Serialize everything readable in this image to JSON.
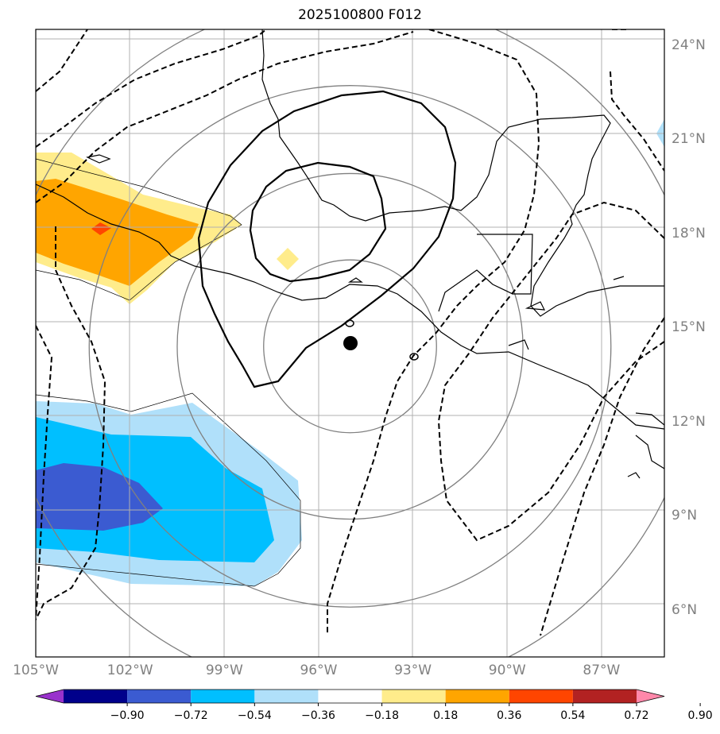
{
  "title": "2025100800 F012",
  "map": {
    "lon_range": [
      -105,
      -85
    ],
    "lat_range": [
      4.5,
      24.5
    ],
    "lon_ticks": [
      {
        "value": -105,
        "label": "105°W"
      },
      {
        "value": -102,
        "label": "102°W"
      },
      {
        "value": -99,
        "label": "99°W"
      },
      {
        "value": -96,
        "label": "96°W"
      },
      {
        "value": -93,
        "label": "93°W"
      },
      {
        "value": -90,
        "label": "90°W"
      },
      {
        "value": -87,
        "label": "87°W"
      }
    ],
    "lat_ticks": [
      {
        "value": 24,
        "label": "24°N"
      },
      {
        "value": 21,
        "label": "21°N"
      },
      {
        "value": 18,
        "label": "18°N"
      },
      {
        "value": 15,
        "label": "15°N"
      },
      {
        "value": 12,
        "label": "12°N"
      },
      {
        "value": 9,
        "label": "9°N"
      },
      {
        "value": 6,
        "label": "6°N"
      }
    ],
    "storm_center": {
      "lon": -95,
      "lat": 14.4
    },
    "range_rings_deg": [
      2.75,
      5.5,
      8.3,
      11.1
    ],
    "colors": {
      "land": "#000000",
      "grid": "#b0b0b0",
      "rings": "#808080",
      "contour": "#000000"
    }
  },
  "colorbar": {
    "bounds": [
      "−0.90",
      "−0.72",
      "−0.54",
      "−0.36",
      "−0.18",
      "0.18",
      "0.36",
      "0.54",
      "0.72",
      "0.90"
    ],
    "colors": [
      "#9932cc",
      "#00008b",
      "#3b5bd1",
      "#00bfff",
      "#b0e0fa",
      "#ffffff",
      "#ffec8b",
      "#ffa500",
      "#ff4500",
      "#b22222",
      "#ff88aa"
    ]
  }
}
